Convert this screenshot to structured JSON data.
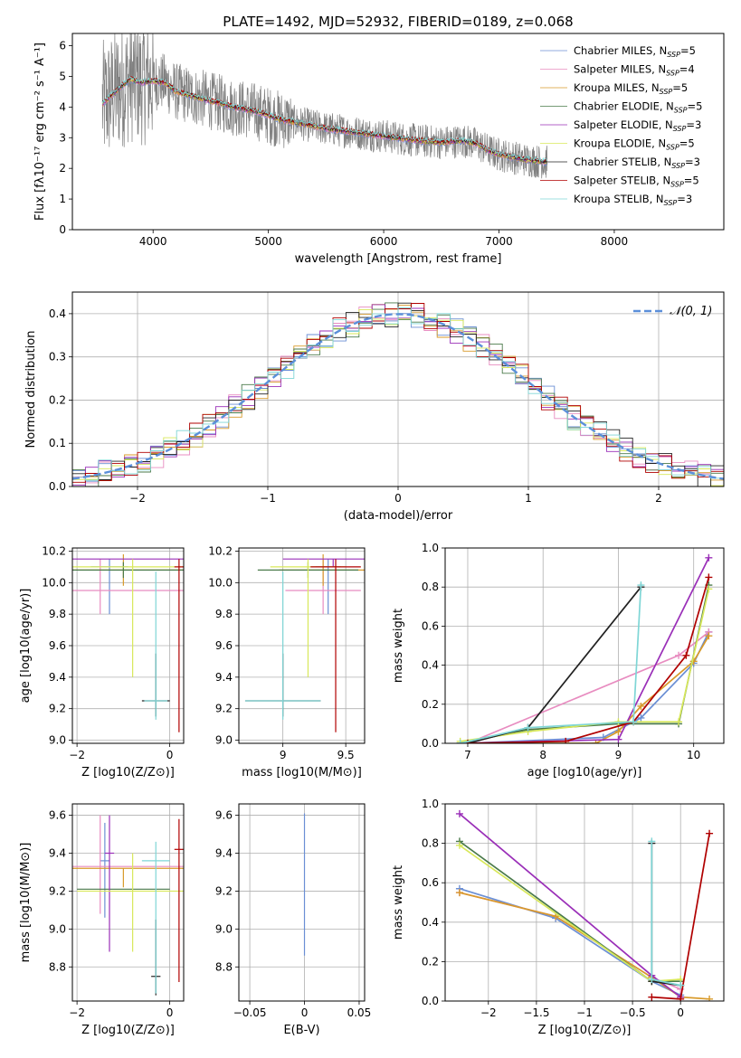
{
  "figure": {
    "title": "PLATE=1492, MJD=52932, FIBERID=0189, z=0.068",
    "series_colors": [
      "#6b8fd4",
      "#e88cc0",
      "#d89a2a",
      "#4a7a4a",
      "#9a2fb8",
      "#d8e85a",
      "#222222",
      "#b00000",
      "#7fd6d6"
    ]
  },
  "chart_data": [
    {
      "id": "spectrum",
      "type": "line",
      "title": "PLATE=1492, MJD=52932, FIBERID=0189, z=0.068",
      "xlabel": "wavelength [Angstrom, rest frame]",
      "ylabel": "Flux [fλ10⁻¹⁷ erg cm⁻² s⁻¹ A⁻¹]",
      "xlim": [
        3300,
        8950
      ],
      "ylim": [
        0,
        6.4
      ],
      "xticks": [
        4000,
        5000,
        6000,
        7000,
        8000
      ],
      "yticks": [
        0,
        1,
        2,
        3,
        4,
        5,
        6
      ],
      "grid": false,
      "legend_position": "upper-right",
      "data_range": [
        3560,
        7420
      ],
      "model_points": [
        [
          3560,
          4.1
        ],
        [
          3700,
          4.6
        ],
        [
          3800,
          4.9
        ],
        [
          3900,
          4.8
        ],
        [
          4000,
          4.85
        ],
        [
          4100,
          4.8
        ],
        [
          4200,
          4.5
        ],
        [
          4300,
          4.4
        ],
        [
          4500,
          4.2
        ],
        [
          4700,
          4.0
        ],
        [
          4900,
          3.85
        ],
        [
          5100,
          3.6
        ],
        [
          5300,
          3.45
        ],
        [
          5500,
          3.3
        ],
        [
          5700,
          3.2
        ],
        [
          5900,
          3.1
        ],
        [
          6100,
          3.0
        ],
        [
          6300,
          2.9
        ],
        [
          6500,
          2.85
        ],
        [
          6700,
          2.9
        ],
        [
          6800,
          2.8
        ],
        [
          6900,
          2.6
        ],
        [
          7000,
          2.45
        ],
        [
          7200,
          2.3
        ],
        [
          7400,
          2.2
        ]
      ],
      "legend": [
        {
          "label": "Chabrier MILES, N",
          "sub": "SSP",
          "suffix": "=5"
        },
        {
          "label": "Salpeter MILES, N",
          "sub": "SSP",
          "suffix": "=4"
        },
        {
          "label": "Kroupa MILES, N",
          "sub": "SSP",
          "suffix": "=5"
        },
        {
          "label": "Chabrier ELODIE, N",
          "sub": "SSP",
          "suffix": "=5"
        },
        {
          "label": "Salpeter ELODIE, N",
          "sub": "SSP",
          "suffix": "=3"
        },
        {
          "label": "Kroupa ELODIE, N",
          "sub": "SSP",
          "suffix": "=5"
        },
        {
          "label": "Chabrier STELIB, N",
          "sub": "SSP",
          "suffix": "=3"
        },
        {
          "label": "Salpeter STELIB, N",
          "sub": "SSP",
          "suffix": "=5"
        },
        {
          "label": "Kroupa STELIB, N",
          "sub": "SSP",
          "suffix": "=3"
        }
      ]
    },
    {
      "id": "residuals",
      "type": "line",
      "xlabel": "(data-model)/error",
      "ylabel": "Normed distribution",
      "xlim": [
        -2.5,
        2.5
      ],
      "ylim": [
        0,
        0.45
      ],
      "xticks": [
        -2,
        -1,
        0,
        1,
        2
      ],
      "yticks": [
        0.0,
        0.1,
        0.2,
        0.3,
        0.4
      ],
      "grid": true,
      "legend_position": "upper-right",
      "legend_label": "𝒩(0, 1)",
      "bin_width": 0.1
    },
    {
      "id": "age-vs-Z",
      "type": "scatter",
      "xlabel": "Z [log10(Z/Z⊙)]",
      "ylabel": "age  [log10(age/yr)]",
      "xlim": [
        -2.1,
        0.3
      ],
      "ylim": [
        8.98,
        10.22
      ],
      "xticks": [
        -2,
        0
      ],
      "yticks": [
        9.0,
        9.2,
        9.4,
        9.6,
        9.8,
        10.0,
        10.2
      ],
      "grid": true,
      "points": [
        {
          "x": -1.3,
          "y": 10.1,
          "xerr": 0.4,
          "yerr": [
            0.3,
            0.05
          ]
        },
        {
          "x": -1.5,
          "y": 9.95,
          "xerr": 1.9,
          "yerr": [
            0.15,
            0.2
          ]
        },
        {
          "x": -1.0,
          "y": 10.08,
          "xerr": 2.0,
          "yerr": [
            0.1,
            0.1
          ]
        },
        {
          "x": -1.0,
          "y": 10.08,
          "xerr": 2.1,
          "yerr": [
            0.05,
            0.05
          ]
        },
        {
          "x": -1.0,
          "y": 10.15,
          "xerr": 2.0,
          "yerr": [
            0.0,
            0.0
          ]
        },
        {
          "x": -0.8,
          "y": 10.1,
          "xerr": 2.0,
          "yerr": [
            0.7,
            0.05
          ]
        },
        {
          "x": -0.3,
          "y": 9.25,
          "xerr": 0.3,
          "yerr": [
            0.1,
            0.3
          ]
        },
        {
          "x": 0.2,
          "y": 10.1,
          "xerr": 0.1,
          "yerr": [
            1.05,
            0.05
          ]
        },
        {
          "x": -0.3,
          "y": 9.25,
          "xerr": 0.25,
          "yerr": [
            0.12,
            0.82
          ]
        }
      ]
    },
    {
      "id": "age-vs-mass",
      "type": "scatter",
      "xlabel": "mass [log10(M/M⊙)]",
      "ylabel": "",
      "xlim": [
        8.65,
        9.65
      ],
      "ylim": [
        8.98,
        10.22
      ],
      "xticks": [
        9.0,
        9.5
      ],
      "yticks": [
        9.0,
        9.2,
        9.4,
        9.6,
        9.8,
        10.0,
        10.2
      ],
      "grid": true,
      "points": [
        {
          "x": 9.36,
          "y": 10.1,
          "xerr": 0.1,
          "yerr": [
            0.3,
            0.05
          ]
        },
        {
          "x": 9.32,
          "y": 9.95,
          "xerr": 0.3,
          "yerr": [
            0.15,
            0.2
          ]
        },
        {
          "x": 9.32,
          "y": 10.08,
          "xerr": 0.35,
          "yerr": [
            0.1,
            0.1
          ]
        },
        {
          "x": 9.2,
          "y": 10.08,
          "xerr": 0.4,
          "yerr": [
            0.05,
            0.05
          ]
        },
        {
          "x": 9.4,
          "y": 10.15,
          "xerr": 0.4,
          "yerr": [
            0.05,
            0.0
          ]
        },
        {
          "x": 9.2,
          "y": 10.1,
          "xerr": 0.3,
          "yerr": [
            0.7,
            0.05
          ]
        },
        {
          "x": 9.0,
          "y": 9.25,
          "xerr": 0.3,
          "yerr": [
            0.1,
            0.3
          ]
        },
        {
          "x": 9.42,
          "y": 10.1,
          "xerr": 0.2,
          "yerr": [
            1.05,
            0.05
          ]
        },
        {
          "x": 9.0,
          "y": 9.25,
          "xerr": 0.3,
          "yerr": [
            0.12,
            0.82
          ]
        }
      ]
    },
    {
      "id": "weight-vs-age",
      "type": "line",
      "xlabel": "age  [log10(age/yr)]",
      "ylabel": "mass weight",
      "xlim": [
        6.7,
        10.4
      ],
      "ylim": [
        0,
        1.0
      ],
      "xticks": [
        7,
        8,
        9,
        10
      ],
      "yticks": [
        0.0,
        0.2,
        0.4,
        0.6,
        0.8,
        1.0
      ],
      "grid": true,
      "series": [
        {
          "x": [
            7.0,
            8.8,
            9.3,
            10.0,
            10.2
          ],
          "y": [
            0.0,
            0.03,
            0.13,
            0.41,
            0.57
          ]
        },
        {
          "x": [
            7.0,
            9.8,
            10.2
          ],
          "y": [
            0.0,
            0.45,
            0.57
          ]
        },
        {
          "x": [
            7.0,
            8.7,
            9.0,
            9.3,
            10.0,
            10.2
          ],
          "y": [
            0.0,
            0.0,
            0.06,
            0.19,
            0.42,
            0.55
          ]
        },
        {
          "x": [
            6.9,
            7.8,
            9.0,
            9.8,
            10.2
          ],
          "y": [
            0.0,
            0.07,
            0.1,
            0.1,
            0.81
          ]
        },
        {
          "x": [
            7.0,
            9.0,
            10.2
          ],
          "y": [
            0.0,
            0.02,
            0.95
          ]
        },
        {
          "x": [
            6.9,
            7.8,
            9.0,
            9.8,
            10.2
          ],
          "y": [
            0.01,
            0.06,
            0.11,
            0.11,
            0.79
          ]
        },
        {
          "x": [
            7.0,
            7.8,
            9.3
          ],
          "y": [
            0.0,
            0.08,
            0.8
          ]
        },
        {
          "x": [
            7.0,
            8.3,
            9.2,
            9.9,
            10.2
          ],
          "y": [
            0.0,
            0.01,
            0.11,
            0.45,
            0.85
          ]
        },
        {
          "x": [
            6.9,
            7.8,
            9.2,
            9.3
          ],
          "y": [
            0.0,
            0.08,
            0.11,
            0.81
          ]
        }
      ]
    },
    {
      "id": "mass-vs-Z",
      "type": "scatter",
      "xlabel": "Z [log10(Z/Z⊙)]",
      "ylabel": "mass [log10(M/M⊙)]",
      "xlim": [
        -2.1,
        0.3
      ],
      "ylim": [
        8.62,
        9.66
      ],
      "xticks": [
        -2,
        0
      ],
      "yticks": [
        8.8,
        9.0,
        9.2,
        9.4,
        9.6
      ],
      "grid": true,
      "points": [
        {
          "x": -1.4,
          "y": 9.36,
          "xerr": 0.1,
          "yerr": [
            0.3,
            0.2
          ]
        },
        {
          "x": -1.5,
          "y": 9.33,
          "xerr": 1.9,
          "yerr": [
            0.25,
            0.27
          ]
        },
        {
          "x": -1.0,
          "y": 9.32,
          "xerr": 2.0,
          "yerr": [
            0.1,
            0.0
          ]
        },
        {
          "x": -1.0,
          "y": 9.21,
          "xerr": 1.0,
          "yerr": [
            0.0,
            0.0
          ]
        },
        {
          "x": -1.3,
          "y": 9.4,
          "xerr": 0.1,
          "yerr": [
            0.52,
            0.2
          ]
        },
        {
          "x": -0.8,
          "y": 9.2,
          "xerr": 1.2,
          "yerr": [
            0.32,
            0.2
          ]
        },
        {
          "x": -0.3,
          "y": 8.75,
          "xerr": 0.1,
          "yerr": [
            0.1,
            0.3
          ]
        },
        {
          "x": 0.2,
          "y": 9.42,
          "xerr": 0.1,
          "yerr": [
            0.7,
            0.16
          ]
        },
        {
          "x": -0.3,
          "y": 9.36,
          "xerr": 0.3,
          "yerr": [
            0.7,
            0.1
          ]
        }
      ]
    },
    {
      "id": "mass-vs-ebv",
      "type": "scatter",
      "xlabel": "E(B-V)",
      "ylabel": "",
      "xlim": [
        -0.06,
        0.055
      ],
      "ylim": [
        8.62,
        9.66
      ],
      "xticks": [
        -0.05,
        0.0,
        0.05
      ],
      "yticks": [
        8.8,
        9.0,
        9.2,
        9.4,
        9.6
      ],
      "grid": true,
      "points": [
        {
          "x": 0.0,
          "y": 9.36,
          "xerr": 0.0,
          "yerr": [
            0.5,
            0.25
          ]
        }
      ]
    },
    {
      "id": "weight-vs-Z",
      "type": "line",
      "xlabel": "Z [log10(Z/Z⊙)]",
      "ylabel": "mass weight",
      "xlim": [
        -2.45,
        0.45
      ],
      "ylim": [
        0,
        1.0
      ],
      "xticks": [
        -2.0,
        -1.5,
        -1.0,
        -0.5,
        0.0
      ],
      "yticks": [
        0.0,
        0.2,
        0.4,
        0.6,
        0.8,
        1.0
      ],
      "grid": true,
      "series": [
        {
          "x": [
            -2.3,
            -1.3,
            -0.3,
            0.0
          ],
          "y": [
            0.57,
            0.42,
            0.1,
            0.03
          ]
        },
        {
          "x": [
            -2.3,
            -1.3,
            -0.3,
            0.0
          ],
          "y": [
            0.55,
            0.43,
            0.12,
            0.06
          ]
        },
        {
          "x": [
            -2.3,
            -1.3,
            -0.3,
            0.0,
            0.3
          ],
          "y": [
            0.55,
            0.43,
            0.12,
            0.02,
            0.01
          ]
        },
        {
          "x": [
            -2.3,
            -0.3,
            0.0
          ],
          "y": [
            0.81,
            0.1,
            0.1
          ]
        },
        {
          "x": [
            -2.3,
            -0.3,
            0.0
          ],
          "y": [
            0.95,
            0.13,
            0.02
          ]
        },
        {
          "x": [
            -2.3,
            -0.3,
            0.0
          ],
          "y": [
            0.79,
            0.1,
            0.11
          ]
        },
        {
          "x": [
            -0.3,
            -0.3,
            0.0
          ],
          "y": [
            0.8,
            0.1,
            0.08
          ]
        },
        {
          "x": [
            -0.3,
            0.0,
            0.3
          ],
          "y": [
            0.02,
            0.01,
            0.85
          ]
        },
        {
          "x": [
            -0.3,
            -0.3,
            0.0
          ],
          "y": [
            0.81,
            0.11,
            0.08
          ]
        }
      ]
    }
  ]
}
